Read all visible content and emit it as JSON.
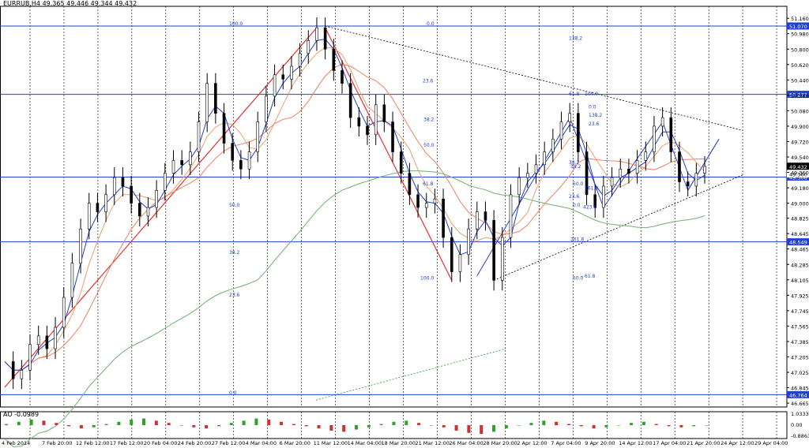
{
  "window": {
    "symbol_title": "EURRUB,H4",
    "ohlc": "49.365 49.446 49.344 49.432"
  },
  "ao_panel": {
    "title": "AO -0.0989",
    "ticks": [
      "1.0333",
      "0.00",
      "-0.8863"
    ]
  },
  "chart_data": {
    "type": "candlestick",
    "symbol": "EURRUB",
    "timeframe": "H4",
    "last": {
      "open": 49.365,
      "high": 49.446,
      "low": 49.344,
      "close": 49.432
    },
    "ylim": [
      46.62,
      51.3
    ],
    "y_ticks": [
      "51.160",
      "50.980",
      "50.800",
      "50.620",
      "50.440",
      "50.260",
      "50.080",
      "49.900",
      "49.720",
      "49.540",
      "49.360",
      "49.180",
      "49.000",
      "48.825",
      "48.645",
      "48.465",
      "48.285",
      "48.105",
      "47.925",
      "47.745",
      "47.565",
      "47.385",
      "47.205",
      "47.025",
      "46.845",
      "46.665"
    ],
    "x_ticks": [
      "4 Feb 2014",
      "7 Feb 20:00",
      "12 Feb 12:00",
      "17 Feb 12:00",
      "20 Feb 04:00",
      "24 Feb 20:00",
      "27 Feb 12:00",
      "4 Mar 04:00",
      "6 Mar 20:00",
      "11 Mar 12:00",
      "14 Mar 04:00",
      "18 Mar 20:00",
      "21 Mar 12:00",
      "26 Mar 04:00",
      "28 Mar 20:00",
      "2 Apr 12:00",
      "7 Apr 04:00",
      "9 Apr 20:00",
      "14 Apr 12:00",
      "17 Apr 04:00",
      "21 Apr 20:00",
      "24 Apr 12:00",
      "29 Apr 04:00"
    ],
    "price_path": [
      47.15,
      46.95,
      47.05,
      47.35,
      47.45,
      47.3,
      47.55,
      47.9,
      48.3,
      48.7,
      49.0,
      48.9,
      49.1,
      49.3,
      49.2,
      49.0,
      48.85,
      48.95,
      49.15,
      49.35,
      49.5,
      49.45,
      49.6,
      49.95,
      50.4,
      50.05,
      49.7,
      49.5,
      49.4,
      49.6,
      49.95,
      50.25,
      50.5,
      50.45,
      50.6,
      50.75,
      50.9,
      51.05,
      50.8,
      50.55,
      50.4,
      50.0,
      49.9,
      49.8,
      50.15,
      49.95,
      49.6,
      49.35,
      49.1,
      48.95,
      49.0,
      49.05,
      48.6,
      48.2,
      48.4,
      48.7,
      48.9,
      48.8,
      48.1,
      48.6,
      49.1,
      49.3,
      49.35,
      49.45,
      49.6,
      49.75,
      49.95,
      50.05,
      49.6,
      49.1,
      48.95,
      49.2,
      49.3,
      49.4,
      49.35,
      49.5,
      49.6,
      49.9,
      50.0,
      49.6,
      49.25,
      49.2,
      49.35,
      49.43
    ],
    "levels": [
      {
        "label": "51.070",
        "value": 51.07,
        "color": "#2040d0"
      },
      {
        "label": "50.272",
        "value": 50.272,
        "color": "#2040d0"
      },
      {
        "label": "49.306",
        "value": 49.306,
        "color": "#2040d0"
      },
      {
        "label": "48.549",
        "value": 48.549,
        "color": "#2040d0"
      },
      {
        "label": "46.764",
        "value": 46.764,
        "color": "#2040d0"
      }
    ],
    "current_price": {
      "label": "49.432",
      "value": 49.432
    },
    "secondary_price": {
      "label": "49.360",
      "value": 49.36
    },
    "fib_labels": [
      "100.0",
      "0.0",
      "138.2",
      "23.6",
      "38.2",
      "50.0",
      "61.8",
      "100.0",
      "0.0",
      "23.6",
      "38.2",
      "50.0",
      "61.8",
      "100.0",
      "0.0",
      "138.2",
      "23.6",
      "38.2",
      "50.0",
      "61.8",
      "0.0",
      "423.6",
      "161.8",
      "261.8",
      "23.6",
      "38.2",
      "50.0"
    ],
    "series": [
      {
        "name": "MA fast",
        "color": "#e8a070"
      },
      {
        "name": "MA slow",
        "color": "#f08060"
      },
      {
        "name": "MA 200",
        "color": "#70b070"
      }
    ],
    "ao_values": [
      0.1,
      0.3,
      0.5,
      0.4,
      0.2,
      -0.1,
      -0.3,
      -0.2,
      0.1,
      0.3,
      0.5,
      0.6,
      0.4,
      0.2,
      0.0,
      -0.2,
      -0.3,
      -0.1,
      0.2,
      0.4,
      0.6,
      0.5,
      0.3,
      0.1,
      -0.1,
      -0.3,
      -0.5,
      -0.6,
      -0.4,
      -0.2,
      0.1,
      0.3,
      0.4,
      0.2,
      0.0,
      -0.2,
      -0.5,
      -0.7,
      -0.8,
      -0.6,
      -0.3,
      0.0,
      0.2,
      0.4,
      0.3,
      0.1,
      -0.1,
      -0.3,
      -0.2,
      0.0,
      0.2,
      0.3,
      0.1,
      -0.1,
      -0.2,
      -0.1,
      0.0
    ]
  },
  "colors": {
    "grid": "#000000",
    "candle": "#000000",
    "level": "#2040d0",
    "arrow_up": "#e03030",
    "arrow_blue": "#3040d0",
    "ao_up": "#30a030",
    "ao_down": "#d03030",
    "price_box": "#000000"
  }
}
